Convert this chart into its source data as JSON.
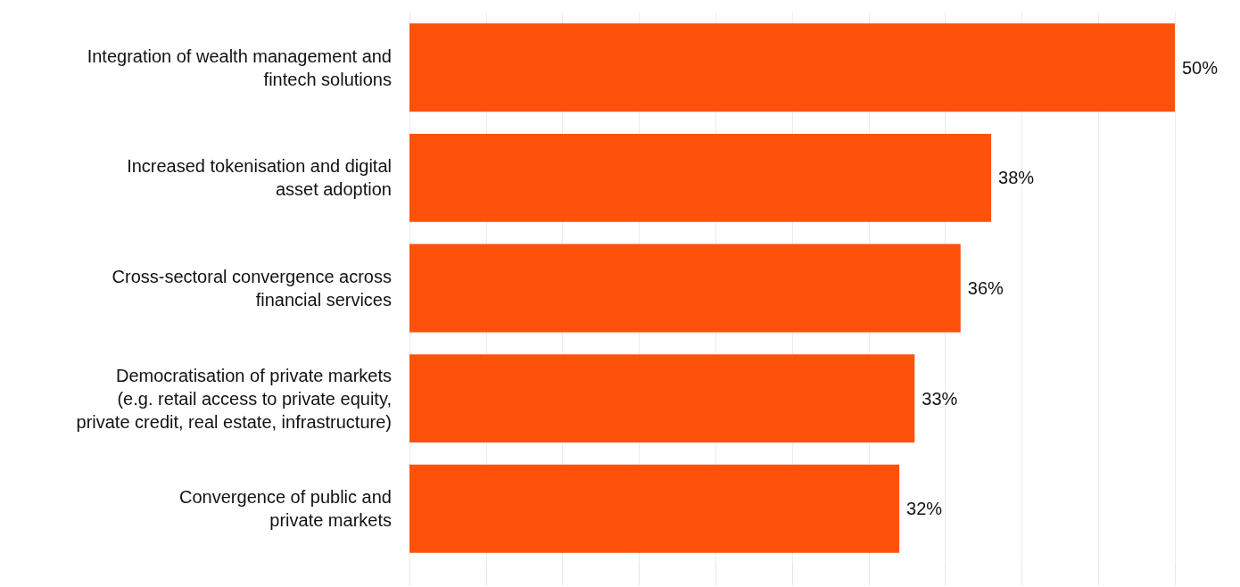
{
  "chart_data": {
    "type": "bar",
    "orientation": "horizontal",
    "categories": [
      "Integration of wealth management and\nfintech solutions",
      "Increased tokenisation and digital\nasset adoption",
      "Cross-sectoral convergence across\nfinancial services",
      "Democratisation of private markets\n(e.g. retail access to private equity,\nprivate credit, real estate, infrastructure)",
      "Convergence of public and\nprivate markets"
    ],
    "values": [
      50,
      38,
      36,
      33,
      32
    ],
    "value_labels": [
      "50%",
      "38%",
      "36%",
      "33%",
      "32%"
    ],
    "color": "#fe520a",
    "xlim": [
      0,
      50
    ],
    "xticks": [
      {
        "value": 0,
        "label": null
      },
      {
        "value": 5,
        "label": null
      },
      {
        "value": 10,
        "label": null
      },
      {
        "value": 15,
        "label": null
      },
      {
        "value": 20,
        "label": null
      },
      {
        "value": 25,
        "label": null
      },
      {
        "value": 30,
        "label": null
      },
      {
        "value": 35,
        "label": null
      },
      {
        "value": 40,
        "label": null
      },
      {
        "value": 45,
        "label": null
      },
      {
        "value": 50,
        "label": null
      }
    ],
    "grid": "x",
    "tick_labels": "y"
  }
}
